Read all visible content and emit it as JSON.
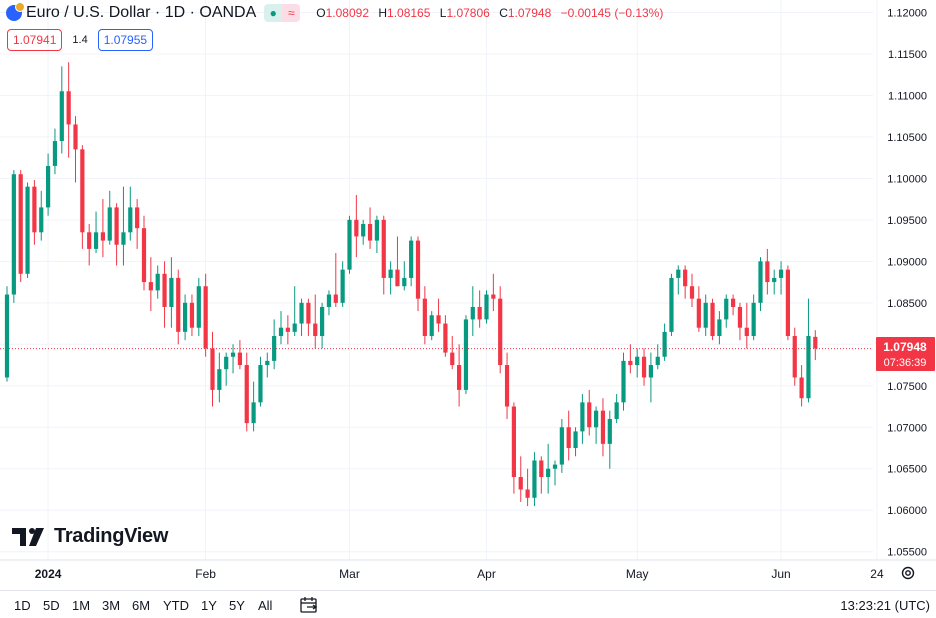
{
  "header": {
    "symbol_title": "Euro / U.S. Dollar · 1D · OANDA",
    "status_open_icon": "dot-icon",
    "status_delay_icon": "approx-icon",
    "ohlc": {
      "o_label": "O",
      "o_value": "1.08092",
      "h_label": "H",
      "h_value": "1.08165",
      "l_label": "L",
      "l_value": "1.07806",
      "c_label": "C",
      "c_value": "1.07948",
      "change": "−0.00145 (−0.13%)"
    }
  },
  "quote": {
    "bid": "1.07941",
    "spread": "1.4",
    "ask": "1.07955"
  },
  "logo_text": "TradingView",
  "timeframes": [
    "1D",
    "5D",
    "1M",
    "3M",
    "6M",
    "YTD",
    "1Y",
    "5Y",
    "All"
  ],
  "clock": "13:23:21 (UTC)",
  "colors": {
    "up": "#089981",
    "down": "#f23645",
    "grid": "#f0f3fa",
    "axis_text": "#131722"
  },
  "chart_data": {
    "type": "candlestick",
    "price_axis_ticks": [
      "1.12000",
      "1.11500",
      "1.11000",
      "1.10500",
      "1.10000",
      "1.09500",
      "1.09000",
      "1.08500",
      "1.08000",
      "1.07500",
      "1.07000",
      "1.06500",
      "1.06000",
      "1.05500"
    ],
    "time_axis_ticks": [
      {
        "label": "2024",
        "bold": true,
        "index": 6
      },
      {
        "label": "Feb",
        "index": 29
      },
      {
        "label": "Mar",
        "index": 50
      },
      {
        "label": "Apr",
        "index": 70
      },
      {
        "label": "May",
        "index": 92
      },
      {
        "label": "Jun",
        "index": 113
      },
      {
        "label": "24",
        "index": 127
      }
    ],
    "last_price": "1.07948",
    "countdown": "07:36:39",
    "ylim": [
      1.054,
      1.1215
    ],
    "candles": [
      {
        "o": 1.076,
        "h": 1.087,
        "l": 1.0755,
        "c": 1.086
      },
      {
        "o": 1.086,
        "h": 1.101,
        "l": 1.085,
        "c": 1.1005
      },
      {
        "o": 1.1005,
        "h": 1.101,
        "l": 1.0875,
        "c": 1.0885
      },
      {
        "o": 1.0885,
        "h": 1.0995,
        "l": 1.088,
        "c": 1.099
      },
      {
        "o": 1.099,
        "h": 1.0998,
        "l": 1.092,
        "c": 1.0935
      },
      {
        "o": 1.0935,
        "h": 1.0985,
        "l": 1.0925,
        "c": 1.0965
      },
      {
        "o": 1.0965,
        "h": 1.103,
        "l": 1.0955,
        "c": 1.1015
      },
      {
        "o": 1.1015,
        "h": 1.106,
        "l": 1.1005,
        "c": 1.1045
      },
      {
        "o": 1.1045,
        "h": 1.1135,
        "l": 1.103,
        "c": 1.1105
      },
      {
        "o": 1.1105,
        "h": 1.114,
        "l": 1.1025,
        "c": 1.1065
      },
      {
        "o": 1.1065,
        "h": 1.1075,
        "l": 1.0995,
        "c": 1.1035
      },
      {
        "o": 1.1035,
        "h": 1.104,
        "l": 1.0915,
        "c": 1.0935
      },
      {
        "o": 1.0935,
        "h": 1.0945,
        "l": 1.0895,
        "c": 1.0915
      },
      {
        "o": 1.0915,
        "h": 1.096,
        "l": 1.091,
        "c": 1.0935
      },
      {
        "o": 1.0935,
        "h": 1.0975,
        "l": 1.0905,
        "c": 1.0925
      },
      {
        "o": 1.0925,
        "h": 1.0985,
        "l": 1.092,
        "c": 1.0965
      },
      {
        "o": 1.0965,
        "h": 1.097,
        "l": 1.0895,
        "c": 1.092
      },
      {
        "o": 1.092,
        "h": 1.099,
        "l": 1.0895,
        "c": 1.0935
      },
      {
        "o": 1.0935,
        "h": 1.099,
        "l": 1.0925,
        "c": 1.0965
      },
      {
        "o": 1.0965,
        "h": 1.0975,
        "l": 1.0915,
        "c": 1.094
      },
      {
        "o": 1.094,
        "h": 1.0955,
        "l": 1.0865,
        "c": 1.0875
      },
      {
        "o": 1.0875,
        "h": 1.0905,
        "l": 1.084,
        "c": 1.0865
      },
      {
        "o": 1.0865,
        "h": 1.0895,
        "l": 1.0855,
        "c": 1.0885
      },
      {
        "o": 1.0885,
        "h": 1.09,
        "l": 1.082,
        "c": 1.0845
      },
      {
        "o": 1.0845,
        "h": 1.0905,
        "l": 1.082,
        "c": 1.088
      },
      {
        "o": 1.088,
        "h": 1.089,
        "l": 1.08,
        "c": 1.0815
      },
      {
        "o": 1.0815,
        "h": 1.086,
        "l": 1.0805,
        "c": 1.085
      },
      {
        "o": 1.085,
        "h": 1.086,
        "l": 1.081,
        "c": 1.082
      },
      {
        "o": 1.082,
        "h": 1.088,
        "l": 1.081,
        "c": 1.087
      },
      {
        "o": 1.087,
        "h": 1.0885,
        "l": 1.0785,
        "c": 1.0795
      },
      {
        "o": 1.0795,
        "h": 1.0815,
        "l": 1.0725,
        "c": 1.0745
      },
      {
        "o": 1.0745,
        "h": 1.079,
        "l": 1.073,
        "c": 1.077
      },
      {
        "o": 1.077,
        "h": 1.079,
        "l": 1.075,
        "c": 1.0785
      },
      {
        "o": 1.0785,
        "h": 1.08,
        "l": 1.0765,
        "c": 1.079
      },
      {
        "o": 1.079,
        "h": 1.0805,
        "l": 1.077,
        "c": 1.0775
      },
      {
        "o": 1.0775,
        "h": 1.079,
        "l": 1.0695,
        "c": 1.0705
      },
      {
        "o": 1.0705,
        "h": 1.0755,
        "l": 1.0695,
        "c": 1.073
      },
      {
        "o": 1.073,
        "h": 1.0785,
        "l": 1.0725,
        "c": 1.0775
      },
      {
        "o": 1.0775,
        "h": 1.079,
        "l": 1.076,
        "c": 1.078
      },
      {
        "o": 1.078,
        "h": 1.083,
        "l": 1.077,
        "c": 1.081
      },
      {
        "o": 1.081,
        "h": 1.084,
        "l": 1.08,
        "c": 1.082
      },
      {
        "o": 1.082,
        "h": 1.0835,
        "l": 1.08,
        "c": 1.0815
      },
      {
        "o": 1.0815,
        "h": 1.087,
        "l": 1.081,
        "c": 1.0825
      },
      {
        "o": 1.0825,
        "h": 1.0855,
        "l": 1.081,
        "c": 1.085
      },
      {
        "o": 1.085,
        "h": 1.0855,
        "l": 1.081,
        "c": 1.0825
      },
      {
        "o": 1.0825,
        "h": 1.086,
        "l": 1.0795,
        "c": 1.081
      },
      {
        "o": 1.081,
        "h": 1.085,
        "l": 1.0795,
        "c": 1.0845
      },
      {
        "o": 1.0845,
        "h": 1.0865,
        "l": 1.0835,
        "c": 1.086
      },
      {
        "o": 1.086,
        "h": 1.091,
        "l": 1.0845,
        "c": 1.085
      },
      {
        "o": 1.085,
        "h": 1.09,
        "l": 1.0845,
        "c": 1.089
      },
      {
        "o": 1.089,
        "h": 1.0955,
        "l": 1.0885,
        "c": 1.095
      },
      {
        "o": 1.095,
        "h": 1.098,
        "l": 1.0905,
        "c": 1.093
      },
      {
        "o": 1.093,
        "h": 1.095,
        "l": 1.092,
        "c": 1.0945
      },
      {
        "o": 1.0945,
        "h": 1.0965,
        "l": 1.0915,
        "c": 1.0925
      },
      {
        "o": 1.0925,
        "h": 1.0955,
        "l": 1.091,
        "c": 1.095
      },
      {
        "o": 1.095,
        "h": 1.0955,
        "l": 1.086,
        "c": 1.088
      },
      {
        "o": 1.088,
        "h": 1.09,
        "l": 1.086,
        "c": 1.089
      },
      {
        "o": 1.089,
        "h": 1.093,
        "l": 1.087,
        "c": 1.087
      },
      {
        "o": 1.087,
        "h": 1.09,
        "l": 1.0865,
        "c": 1.088
      },
      {
        "o": 1.088,
        "h": 1.093,
        "l": 1.087,
        "c": 1.0925
      },
      {
        "o": 1.0925,
        "h": 1.093,
        "l": 1.084,
        "c": 1.0855
      },
      {
        "o": 1.0855,
        "h": 1.087,
        "l": 1.08,
        "c": 1.081
      },
      {
        "o": 1.081,
        "h": 1.084,
        "l": 1.0805,
        "c": 1.0835
      },
      {
        "o": 1.0835,
        "h": 1.0855,
        "l": 1.0815,
        "c": 1.0825
      },
      {
        "o": 1.0825,
        "h": 1.0835,
        "l": 1.0785,
        "c": 1.079
      },
      {
        "o": 1.079,
        "h": 1.081,
        "l": 1.077,
        "c": 1.0775
      },
      {
        "o": 1.0775,
        "h": 1.08,
        "l": 1.0725,
        "c": 1.0745
      },
      {
        "o": 1.0745,
        "h": 1.0835,
        "l": 1.074,
        "c": 1.083
      },
      {
        "o": 1.083,
        "h": 1.087,
        "l": 1.081,
        "c": 1.0845
      },
      {
        "o": 1.0845,
        "h": 1.0865,
        "l": 1.082,
        "c": 1.083
      },
      {
        "o": 1.083,
        "h": 1.0865,
        "l": 1.0825,
        "c": 1.086
      },
      {
        "o": 1.086,
        "h": 1.0885,
        "l": 1.084,
        "c": 1.0855
      },
      {
        "o": 1.0855,
        "h": 1.087,
        "l": 1.0765,
        "c": 1.0775
      },
      {
        "o": 1.0775,
        "h": 1.079,
        "l": 1.071,
        "c": 1.0725
      },
      {
        "o": 1.0725,
        "h": 1.073,
        "l": 1.062,
        "c": 1.064
      },
      {
        "o": 1.064,
        "h": 1.0665,
        "l": 1.061,
        "c": 1.0625
      },
      {
        "o": 1.0625,
        "h": 1.065,
        "l": 1.0605,
        "c": 1.0615
      },
      {
        "o": 1.0615,
        "h": 1.067,
        "l": 1.0605,
        "c": 1.066
      },
      {
        "o": 1.066,
        "h": 1.0665,
        "l": 1.062,
        "c": 1.064
      },
      {
        "o": 1.064,
        "h": 1.068,
        "l": 1.062,
        "c": 1.065
      },
      {
        "o": 1.065,
        "h": 1.066,
        "l": 1.063,
        "c": 1.0655
      },
      {
        "o": 1.0655,
        "h": 1.071,
        "l": 1.0645,
        "c": 1.07
      },
      {
        "o": 1.07,
        "h": 1.072,
        "l": 1.066,
        "c": 1.0675
      },
      {
        "o": 1.0675,
        "h": 1.07,
        "l": 1.0665,
        "c": 1.0695
      },
      {
        "o": 1.0695,
        "h": 1.074,
        "l": 1.068,
        "c": 1.073
      },
      {
        "o": 1.073,
        "h": 1.0745,
        "l": 1.069,
        "c": 1.07
      },
      {
        "o": 1.07,
        "h": 1.0725,
        "l": 1.068,
        "c": 1.072
      },
      {
        "o": 1.072,
        "h": 1.0735,
        "l": 1.0665,
        "c": 1.068
      },
      {
        "o": 1.068,
        "h": 1.072,
        "l": 1.065,
        "c": 1.071
      },
      {
        "o": 1.071,
        "h": 1.074,
        "l": 1.0705,
        "c": 1.073
      },
      {
        "o": 1.073,
        "h": 1.079,
        "l": 1.072,
        "c": 1.078
      },
      {
        "o": 1.078,
        "h": 1.08,
        "l": 1.0765,
        "c": 1.0775
      },
      {
        "o": 1.0775,
        "h": 1.0795,
        "l": 1.076,
        "c": 1.0785
      },
      {
        "o": 1.0785,
        "h": 1.0795,
        "l": 1.075,
        "c": 1.076
      },
      {
        "o": 1.076,
        "h": 1.079,
        "l": 1.073,
        "c": 1.0775
      },
      {
        "o": 1.0775,
        "h": 1.08,
        "l": 1.077,
        "c": 1.0785
      },
      {
        "o": 1.0785,
        "h": 1.0825,
        "l": 1.078,
        "c": 1.0815
      },
      {
        "o": 1.0815,
        "h": 1.0885,
        "l": 1.081,
        "c": 1.088
      },
      {
        "o": 1.088,
        "h": 1.0895,
        "l": 1.086,
        "c": 1.089
      },
      {
        "o": 1.089,
        "h": 1.0895,
        "l": 1.0855,
        "c": 1.087
      },
      {
        "o": 1.087,
        "h": 1.0885,
        "l": 1.0845,
        "c": 1.0855
      },
      {
        "o": 1.0855,
        "h": 1.087,
        "l": 1.0815,
        "c": 1.082
      },
      {
        "o": 1.082,
        "h": 1.086,
        "l": 1.081,
        "c": 1.085
      },
      {
        "o": 1.085,
        "h": 1.0855,
        "l": 1.0805,
        "c": 1.081
      },
      {
        "o": 1.081,
        "h": 1.084,
        "l": 1.08,
        "c": 1.083
      },
      {
        "o": 1.083,
        "h": 1.086,
        "l": 1.082,
        "c": 1.0855
      },
      {
        "o": 1.0855,
        "h": 1.086,
        "l": 1.0835,
        "c": 1.0845
      },
      {
        "o": 1.0845,
        "h": 1.085,
        "l": 1.0805,
        "c": 1.082
      },
      {
        "o": 1.082,
        "h": 1.085,
        "l": 1.0795,
        "c": 1.081
      },
      {
        "o": 1.081,
        "h": 1.086,
        "l": 1.0805,
        "c": 1.085
      },
      {
        "o": 1.085,
        "h": 1.0905,
        "l": 1.084,
        "c": 1.09
      },
      {
        "o": 1.09,
        "h": 1.0915,
        "l": 1.086,
        "c": 1.0875
      },
      {
        "o": 1.0875,
        "h": 1.089,
        "l": 1.086,
        "c": 1.088
      },
      {
        "o": 1.088,
        "h": 1.09,
        "l": 1.086,
        "c": 1.089
      },
      {
        "o": 1.089,
        "h": 1.0895,
        "l": 1.0805,
        "c": 1.081
      },
      {
        "o": 1.081,
        "h": 1.082,
        "l": 1.075,
        "c": 1.076
      },
      {
        "o": 1.076,
        "h": 1.0775,
        "l": 1.0725,
        "c": 1.0735
      },
      {
        "o": 1.0735,
        "h": 1.0855,
        "l": 1.073,
        "c": 1.081
      },
      {
        "o": 1.0809,
        "h": 1.0817,
        "l": 1.0781,
        "c": 1.0795
      }
    ]
  }
}
